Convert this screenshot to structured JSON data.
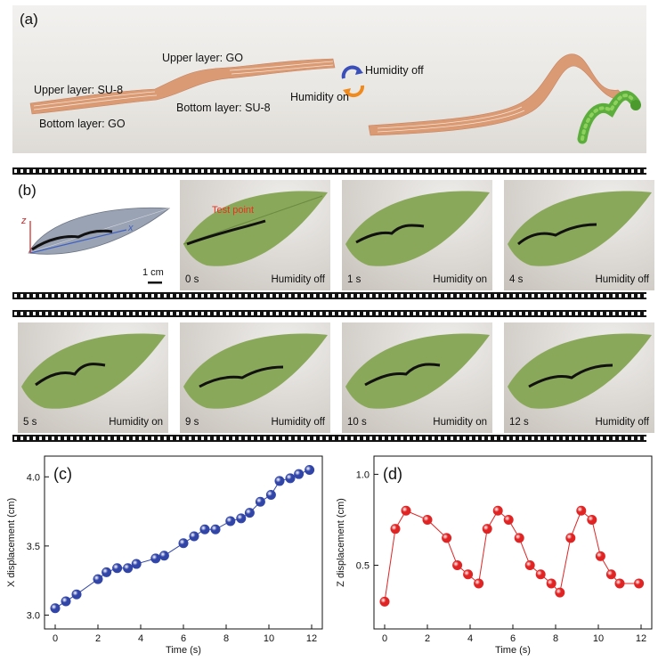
{
  "panel_a": {
    "letter": "(a)",
    "labels": {
      "upper_su8": "Upper layer: SU-8",
      "bottom_go": "Bottom layer: GO",
      "upper_go": "Upper layer: GO",
      "bottom_su8": "Bottom layer: SU-8",
      "humidity_off": "Humidity off",
      "humidity_on": "Humidity on"
    },
    "colors": {
      "strip": "#d99a74",
      "arrow_blue": "#3b4fb8",
      "arrow_orange": "#f08a1c",
      "caterpillar": "#5cae3c"
    }
  },
  "panel_b": {
    "letter": "(b)",
    "schematic": {
      "axis_z": "z",
      "axis_x": "x",
      "scale_bar": "1 cm"
    },
    "test_point_label": "Test point",
    "frames": [
      {
        "time": "0 s",
        "state": "Humidity off"
      },
      {
        "time": "1 s",
        "state": "Humidity on"
      },
      {
        "time": "4 s",
        "state": "Humidity off"
      },
      {
        "time": "5 s",
        "state": "Humidity on"
      },
      {
        "time": "9 s",
        "state": "Humidity off"
      },
      {
        "time": "10 s",
        "state": "Humidity on"
      },
      {
        "time": "12 s",
        "state": "Humidity off"
      }
    ],
    "colors": {
      "leaf": "#8aa85a",
      "actuator": "#111111",
      "test_point": "#e8321e"
    }
  },
  "chart_data": [
    {
      "letter": "(c)",
      "type": "line",
      "xlabel": "Time (s)",
      "ylabel": "X displacement (cm)",
      "xlim": [
        -0.5,
        12.5
      ],
      "ylim": [
        2.9,
        4.15
      ],
      "xticks": [
        0,
        2,
        4,
        6,
        8,
        10,
        12
      ],
      "yticks": [
        3.0,
        3.5,
        4.0
      ],
      "color": "#3145a8",
      "x": [
        0,
        0.5,
        1.0,
        2.0,
        2.4,
        2.9,
        3.4,
        3.8,
        4.7,
        5.1,
        6.0,
        6.5,
        7.0,
        7.5,
        8.2,
        8.7,
        9.1,
        9.6,
        10.1,
        10.5,
        11.0,
        11.4,
        11.9
      ],
      "y": [
        3.05,
        3.1,
        3.15,
        3.26,
        3.31,
        3.34,
        3.34,
        3.37,
        3.41,
        3.43,
        3.52,
        3.57,
        3.62,
        3.62,
        3.68,
        3.7,
        3.74,
        3.82,
        3.87,
        3.97,
        3.99,
        4.02,
        4.05
      ]
    },
    {
      "letter": "(d)",
      "type": "line",
      "xlabel": "Time (s)",
      "ylabel": "Z displacement (cm)",
      "xlim": [
        -0.5,
        12.5
      ],
      "ylim": [
        0.15,
        1.1
      ],
      "xticks": [
        0,
        2,
        4,
        6,
        8,
        10,
        12
      ],
      "yticks": [
        0.5,
        1.0
      ],
      "color": "#e02424",
      "x": [
        0,
        0.5,
        1.0,
        2.0,
        2.9,
        3.4,
        3.9,
        4.4,
        4.8,
        5.3,
        5.8,
        6.3,
        6.8,
        7.3,
        7.8,
        8.2,
        8.7,
        9.2,
        9.7,
        10.1,
        10.6,
        11.0,
        11.9
      ],
      "y": [
        0.3,
        0.7,
        0.8,
        0.75,
        0.65,
        0.5,
        0.45,
        0.4,
        0.7,
        0.8,
        0.75,
        0.65,
        0.5,
        0.45,
        0.4,
        0.35,
        0.65,
        0.8,
        0.75,
        0.55,
        0.45,
        0.4,
        0.4
      ]
    }
  ]
}
